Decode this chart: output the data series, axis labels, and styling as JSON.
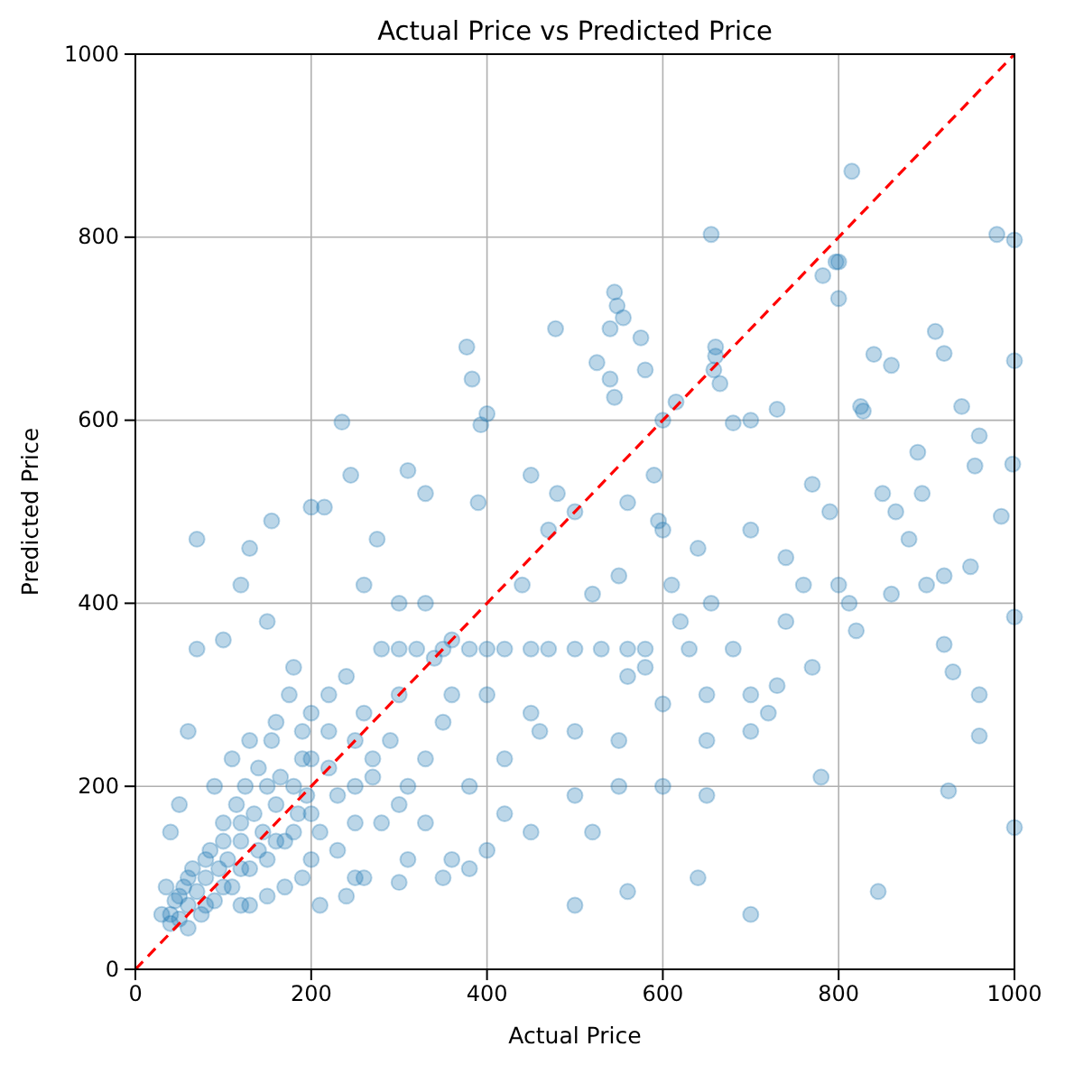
{
  "chart_data": {
    "type": "scatter",
    "title": "Actual Price vs Predicted Price",
    "xlabel": "Actual Price",
    "ylabel": "Predicted Price",
    "xlim": [
      0,
      1000
    ],
    "ylim": [
      0,
      1000
    ],
    "xticks": [
      0,
      200,
      400,
      600,
      800,
      1000
    ],
    "yticks": [
      0,
      200,
      400,
      600,
      800,
      1000
    ],
    "grid": true,
    "marker": "circle",
    "series": [
      {
        "color": "#1f77b4",
        "x": [
          40,
          45,
          50,
          55,
          60,
          65,
          70,
          75,
          80,
          85,
          90,
          95,
          100,
          105,
          110,
          115,
          120,
          125,
          130,
          135,
          140,
          145,
          150,
          155,
          160,
          165,
          170,
          175,
          180,
          185,
          190,
          195,
          200,
          210,
          220,
          230,
          240,
          250,
          260,
          270,
          280,
          290,
          300,
          310,
          320,
          340,
          360,
          380,
          420,
          470,
          530,
          560,
          580,
          630,
          250,
          200,
          170,
          120,
          300,
          260,
          815,
          655,
          980,
          1000,
          800,
          797,
          782,
          800,
          545,
          548,
          555,
          540,
          478,
          660,
          660,
          377,
          383,
          525,
          575,
          580,
          400,
          393,
          235,
          600,
          615,
          658,
          665,
          540,
          545,
          960,
          998,
          955,
          890,
          940,
          860,
          840,
          910,
          920,
          825,
          828,
          700,
          730,
          680,
          850,
          790,
          770,
          800,
          812,
          655,
          820,
          920,
          930,
          960,
          960,
          925,
          780,
          700,
          640,
          560,
          500,
          845,
          1000,
          1000,
          1000,
          985,
          895,
          865,
          740,
          700,
          640,
          600,
          560,
          590,
          595,
          500,
          480,
          450,
          390,
          330,
          310,
          245,
          200,
          155,
          70,
          130,
          215,
          275,
          330,
          360,
          300,
          350,
          400,
          450,
          500,
          400,
          450,
          500,
          550,
          600,
          650,
          700,
          600,
          650,
          720,
          550,
          500,
          520,
          450,
          400,
          380,
          350,
          300,
          260,
          310,
          280,
          250,
          220,
          200,
          180,
          150,
          120,
          100,
          70,
          60,
          50,
          40,
          30,
          35,
          40,
          60,
          80,
          100,
          120,
          140,
          160,
          180,
          200,
          150,
          120,
          100,
          80,
          60,
          50,
          90,
          110,
          130,
          160,
          190,
          220,
          250,
          270,
          300,
          330,
          350,
          380,
          420,
          440,
          470,
          520,
          550,
          610,
          620,
          560,
          680,
          760,
          740,
          880,
          900,
          920,
          950,
          860,
          650,
          700,
          770,
          730,
          580,
          460,
          420,
          360,
          330,
          230,
          190,
          210,
          240,
          150,
          130
        ],
        "values": [
          60,
          75,
          55,
          90,
          70,
          110,
          85,
          60,
          100,
          130,
          75,
          110,
          160,
          120,
          90,
          180,
          140,
          200,
          110,
          170,
          220,
          150,
          120,
          250,
          180,
          210,
          140,
          300,
          200,
          170,
          260,
          190,
          230,
          150,
          260,
          190,
          320,
          160,
          280,
          210,
          350,
          250,
          300,
          200,
          350,
          340,
          300,
          350,
          350,
          350,
          350,
          350,
          350,
          350,
          100,
          120,
          90,
          70,
          400,
          420,
          872,
          803,
          803,
          797,
          773,
          773,
          758,
          733,
          740,
          725,
          712,
          700,
          700,
          680,
          670,
          680,
          645,
          663,
          690,
          655,
          607,
          595,
          598,
          600,
          620,
          655,
          640,
          645,
          625,
          583,
          552,
          550,
          565,
          615,
          660,
          672,
          697,
          673,
          615,
          610,
          600,
          612,
          597,
          520,
          500,
          530,
          420,
          400,
          400,
          370,
          355,
          325,
          300,
          255,
          195,
          210,
          60,
          100,
          85,
          70,
          85,
          385,
          155,
          665,
          495,
          520,
          500,
          450,
          480,
          460,
          480,
          510,
          540,
          490,
          500,
          520,
          540,
          510,
          520,
          545,
          540,
          505,
          490,
          470,
          460,
          505,
          470,
          400,
          360,
          350,
          350,
          350,
          350,
          350,
          300,
          280,
          260,
          250,
          290,
          300,
          300,
          200,
          190,
          280,
          200,
          190,
          150,
          150,
          130,
          110,
          100,
          95,
          100,
          120,
          160,
          250,
          300,
          280,
          330,
          380,
          420,
          360,
          350,
          260,
          180,
          150,
          60,
          90,
          50,
          45,
          70,
          90,
          110,
          130,
          140,
          150,
          170,
          200,
          160,
          140,
          120,
          100,
          80,
          200,
          230,
          250,
          270,
          230,
          220,
          200,
          230,
          180,
          230,
          270,
          200,
          230,
          420,
          480,
          410,
          430,
          420,
          380,
          320,
          350,
          420,
          380,
          470,
          420,
          430,
          440,
          410,
          250,
          260,
          330,
          310,
          330,
          260,
          170,
          120,
          160,
          130,
          100,
          70,
          80,
          80,
          70
        ]
      },
      {
        "type": "line",
        "color": "#ff0000",
        "line_style": "dashed",
        "marker": "none",
        "x": [
          0,
          1000
        ],
        "values": [
          0,
          1000
        ]
      }
    ]
  }
}
